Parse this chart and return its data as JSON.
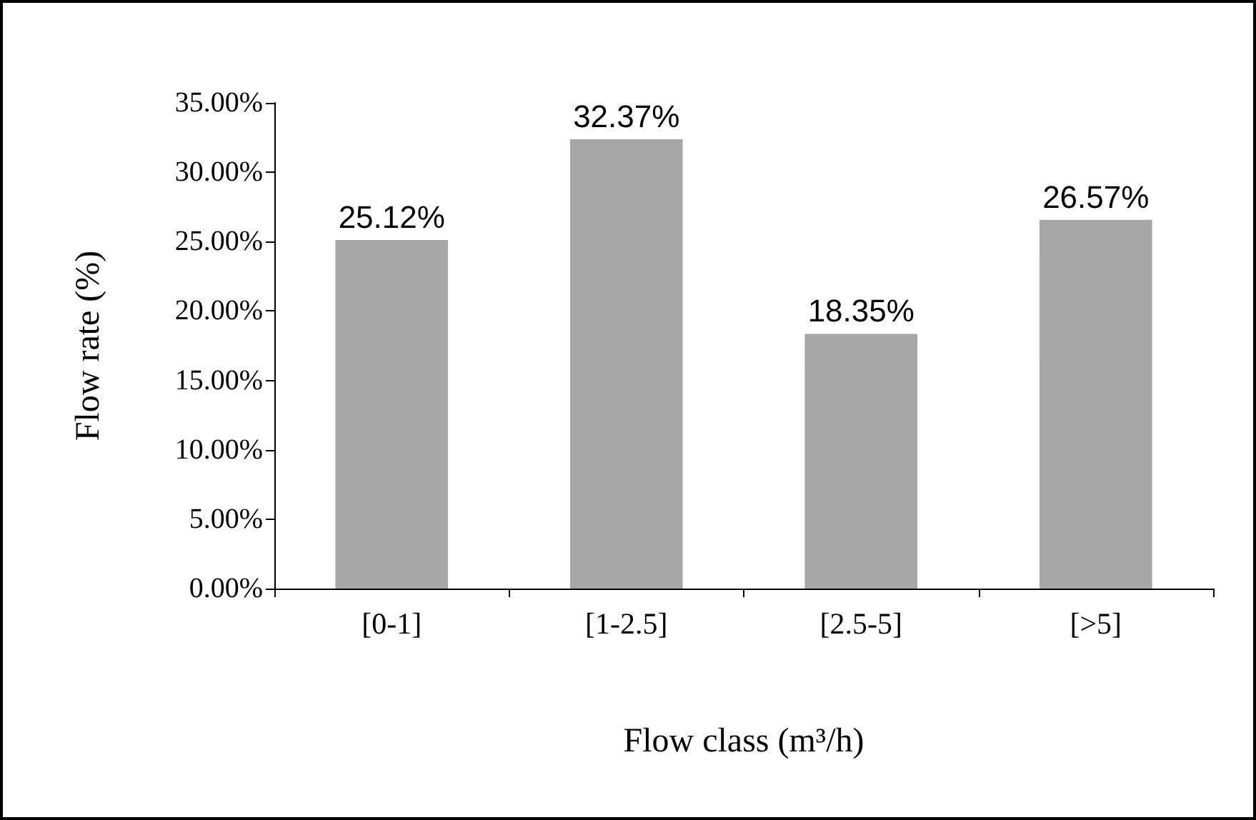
{
  "chart_data": {
    "type": "bar",
    "categories": [
      "[0-1]",
      "[1-2.5]",
      "[2.5-5]",
      "[>5]"
    ],
    "values": [
      25.12,
      32.37,
      18.35,
      26.57
    ],
    "value_labels": [
      "25.12%",
      "32.37%",
      "18.35%",
      "26.57%"
    ],
    "color": "#a6a6a6",
    "xlabel": "Flow class (m³/h)",
    "ylabel": "Flow rate (%)",
    "ylim": [
      0,
      35
    ],
    "yticks": [
      {
        "value": 0,
        "label": "0.00%"
      },
      {
        "value": 5,
        "label": "5.00%"
      },
      {
        "value": 10,
        "label": "10.00%"
      },
      {
        "value": 15,
        "label": "15.00%"
      },
      {
        "value": 20,
        "label": "20.00%"
      },
      {
        "value": 25,
        "label": "25.00%"
      },
      {
        "value": 30,
        "label": "30.00%"
      },
      {
        "value": 35,
        "label": "35.00%"
      }
    ],
    "grid": false
  }
}
